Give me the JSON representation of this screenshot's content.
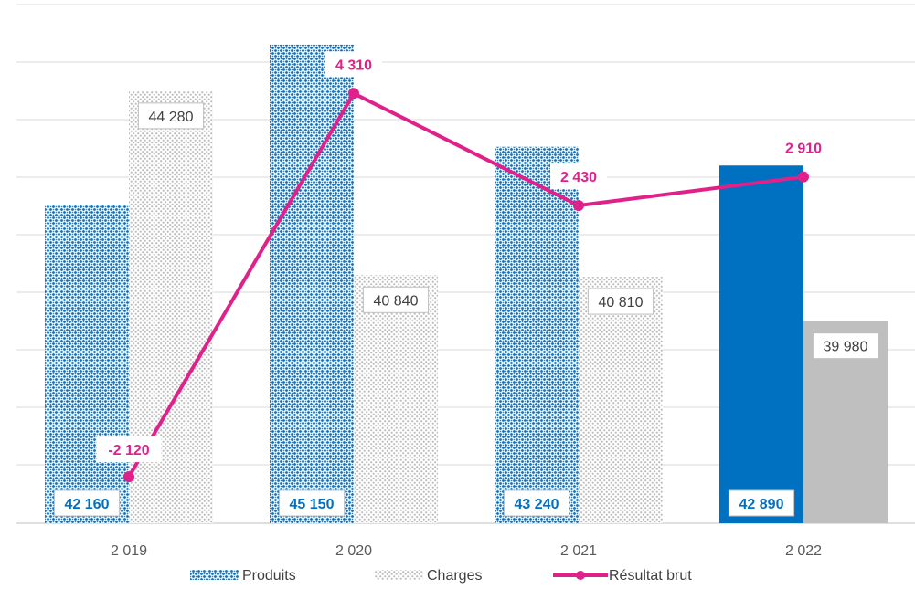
{
  "chart_data": {
    "type": "bar",
    "categories": [
      "2 019",
      "2 020",
      "2 021",
      "2 022"
    ],
    "series": [
      {
        "name": "Produits",
        "kind": "bar",
        "values": [
          42160,
          45150,
          43240,
          42890
        ],
        "labels": [
          "42 160",
          "45 150",
          "43 240",
          "42 890"
        ],
        "color": "#0070C0",
        "pattern": [
          true,
          true,
          true,
          false
        ]
      },
      {
        "name": "Charges",
        "kind": "bar",
        "values": [
          44280,
          40840,
          40810,
          39980
        ],
        "labels": [
          "44 280",
          "40 840",
          "40 810",
          "39 980"
        ],
        "color": "#BFBFBF",
        "pattern": [
          true,
          true,
          true,
          false
        ]
      },
      {
        "name": "Résultat  brut",
        "kind": "line",
        "values": [
          -2120,
          4310,
          2430,
          2910
        ],
        "labels": [
          "-2 120",
          "4 310",
          "2 430",
          "2 910"
        ],
        "color": "#E0218A"
      }
    ],
    "bar_axis": {
      "min": 36200,
      "max": 45900
    },
    "line_axis": {
      "min": -2900,
      "max": 5800
    },
    "grid": true,
    "legend": "bottom"
  }
}
